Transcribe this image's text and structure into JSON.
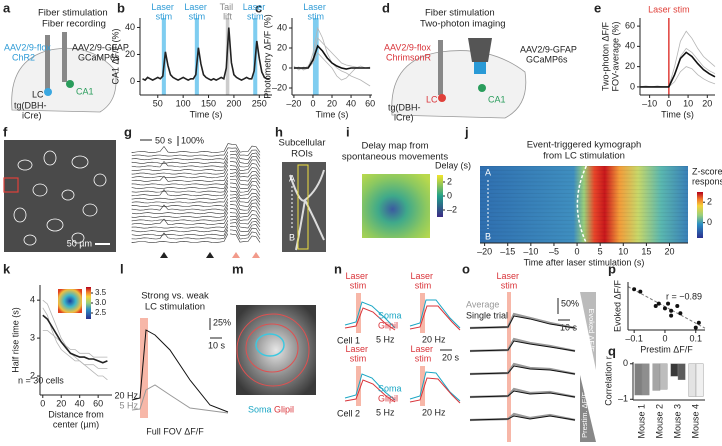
{
  "panel_letters": [
    "a",
    "b",
    "c",
    "d",
    "e",
    "f",
    "g",
    "h",
    "i",
    "j",
    "k",
    "l",
    "m",
    "n",
    "o",
    "p",
    "q"
  ],
  "a": {
    "title": [
      "Fiber stimulation",
      "Fiber recording"
    ],
    "virus_left": [
      "AAV2/9-flox",
      "ChR2"
    ],
    "virus_right": [
      "AAV2/9-GFAP",
      "GCaMP6s"
    ],
    "region_lc": "LC",
    "region_ca1": "CA1",
    "mouse_line": [
      "tg(DBH-",
      "iCre)"
    ]
  },
  "d": {
    "title": [
      "Fiber stimulation",
      "Two-photon imaging"
    ],
    "virus_left": [
      "AAV2/9-flox",
      "ChrimsonR"
    ],
    "virus_right": [
      "AAV2/9-GFAP",
      "GCaMP6s"
    ],
    "region_lc": "LC",
    "region_ca1": "CA1",
    "mouse_line": [
      "tg(DBH-",
      "iCre)"
    ]
  },
  "f": {
    "scale_bar": "50 µm"
  },
  "g": {
    "time_scale": "50 s",
    "amplitude_scale": "100%"
  },
  "h": {
    "title": [
      "Subcellular",
      "ROIs"
    ],
    "start": "A",
    "end": "B"
  },
  "i": {
    "title": [
      "Delay map from",
      "spontaneous movements"
    ],
    "colorbar": {
      "label": "Delay (s)",
      "lim": [
        -3,
        3
      ],
      "ticks": [
        2,
        0,
        {
          "value": -2,
          "label": "–2"
        }
      ]
    }
  },
  "l": {
    "title": [
      "Strong vs. weak",
      "LC stimulation"
    ],
    "amplitude_scale": "25%",
    "time_scale": "10 s",
    "strong": "20 Hz",
    "weak": "5 Hz",
    "xlabel": "Full FOV ΔF/F"
  },
  "m": {
    "soma": "Soma",
    "gliapil": "Glipil"
  },
  "n": {
    "stim_labels": [
      "Laser stim",
      "Laser stim",
      "Laser stim",
      "Laser stim"
    ],
    "soma": [
      "Soma",
      "Soma"
    ],
    "gliapil": [
      "Glipil",
      "Glipil"
    ],
    "cells": [
      "Cell 1",
      "Cell 2"
    ],
    "freqs": [
      "5 Hz",
      "20 Hz",
      "5 Hz",
      "20 Hz"
    ],
    "time_scale": "20 s"
  },
  "o": {
    "stim": "Laser stim",
    "average": "Average",
    "single": "Single trial",
    "amplitude_scale": "50%",
    "time_scale": "10 s",
    "evoked": "Evoked ΔF/F",
    "prestim": "Prestim. ΔF/F"
  },
  "chart_data": [
    {
      "type": "line",
      "xlabel": "Time (s)",
      "ylabel": "CA1 ΔF/F (%)",
      "xlim": [
        15,
        275
      ],
      "ylim": [
        -10,
        47
      ],
      "xticks": [
        50,
        100,
        150,
        200,
        250
      ],
      "yticks": [
        0,
        20,
        40
      ],
      "x": [
        20,
        25,
        30,
        35,
        40,
        45,
        50,
        55,
        60,
        65,
        70,
        75,
        80,
        85,
        90,
        95,
        100,
        105,
        110,
        115,
        120,
        125,
        130,
        135,
        140,
        145,
        150,
        155,
        160,
        165,
        170,
        175,
        180,
        185,
        190,
        195,
        200,
        205,
        210,
        215,
        220,
        225,
        230,
        235,
        240,
        245,
        250,
        255,
        260,
        265,
        270
      ],
      "series": [
        {
          "color": "#222222",
          "values": [
            2,
            1,
            3,
            2,
            1,
            2,
            3,
            2,
            4,
            22,
            12,
            5,
            3,
            2,
            1,
            2,
            3,
            2,
            1,
            2,
            2,
            5,
            25,
            13,
            5,
            3,
            2,
            1,
            2,
            1,
            2,
            3,
            2,
            10,
            40,
            14,
            5,
            3,
            2,
            1,
            2,
            3,
            2,
            2,
            8,
            30,
            17,
            7,
            3,
            2,
            2
          ]
        }
      ],
      "shaded_regions": [
        {
          "label": "Laser stim",
          "start": 58,
          "end": 66,
          "color": "#7fcdf0"
        },
        {
          "label": "Laser stim",
          "start": 123,
          "end": 131,
          "color": "#7fcdf0"
        },
        {
          "label": "Tail lift",
          "start": 184,
          "end": 191,
          "color": "#cccccc"
        },
        {
          "label": "Laser stim",
          "start": 238,
          "end": 246,
          "color": "#7fcdf0"
        }
      ]
    },
    {
      "type": "line",
      "xlabel": "Time (s)",
      "ylabel": "Photometry ΔF/F (%)",
      "xlim": [
        -22,
        62
      ],
      "ylim": [
        -27,
        50
      ],
      "xticks": [
        {
          "value": -20,
          "label": "–20"
        },
        0,
        20,
        40,
        60
      ],
      "yticks": [
        {
          "value": -20,
          "label": "–20"
        },
        0,
        20,
        40
      ],
      "x": [
        -20,
        -15,
        -10,
        -5,
        0,
        5,
        10,
        15,
        20,
        25,
        30,
        35,
        40,
        45,
        50,
        55,
        60
      ],
      "series": [
        {
          "color": "#b5b5b5",
          "values": [
            2,
            -2,
            1,
            0,
            15,
            40,
            30,
            15,
            5,
            0,
            -3,
            -5,
            -8,
            -10,
            -12,
            -15,
            -18
          ]
        },
        {
          "color": "#b5b5b5",
          "values": [
            -1,
            1,
            -2,
            0,
            5,
            15,
            10,
            5,
            0,
            -8,
            -12,
            -10,
            -5,
            0,
            2,
            0,
            1
          ]
        },
        {
          "color": "#b5b5b5",
          "values": [
            1,
            0,
            -1,
            2,
            10,
            30,
            25,
            20,
            15,
            10,
            5,
            3,
            2,
            1,
            0,
            0,
            0
          ]
        },
        {
          "color": "#111111",
          "values": [
            0,
            0,
            0,
            0,
            8,
            22,
            17,
            10,
            5,
            2,
            0,
            -1,
            0,
            0,
            0,
            0,
            0
          ]
        }
      ],
      "shaded_regions": [
        {
          "label": "Laser stim",
          "start": 0,
          "end": 6,
          "color": "#7fcdf0"
        }
      ]
    },
    {
      "type": "line",
      "xlabel": "Time (s)",
      "ylabel": [
        "Two-photon ΔF/F",
        "FOV-average (%)"
      ],
      "xlim": [
        -15,
        24
      ],
      "ylim": [
        -8,
        68
      ],
      "xticks": [
        {
          "value": -10,
          "label": "–10"
        },
        0,
        10,
        20
      ],
      "yticks": [
        0,
        20,
        40,
        60
      ],
      "x": [
        -15,
        -12,
        -9,
        -6,
        -3,
        0,
        3,
        6,
        9,
        12,
        15,
        18,
        21,
        24
      ],
      "series": [
        {
          "color": "#b5b5b5",
          "values": [
            0,
            0,
            0,
            1,
            0,
            0,
            20,
            45,
            55,
            48,
            38,
            30,
            25,
            20
          ]
        },
        {
          "color": "#b5b5b5",
          "values": [
            0,
            1,
            0,
            0,
            0,
            0,
            12,
            30,
            38,
            34,
            27,
            20,
            16,
            13
          ]
        },
        {
          "color": "#b5b5b5",
          "values": [
            0,
            0,
            0,
            0,
            0,
            0,
            5,
            15,
            20,
            18,
            12,
            8,
            5,
            3
          ]
        },
        {
          "color": "#111111",
          "values": [
            0,
            0,
            0,
            0,
            0,
            0,
            12,
            28,
            34,
            30,
            23,
            17,
            13,
            10
          ]
        }
      ],
      "marker_line": {
        "label": "Laser stim",
        "x": 0,
        "color": "#e0403a"
      }
    },
    {
      "type": "line",
      "xlabel": [
        "Distance from",
        "center (µm)"
      ],
      "ylabel": "Half rise time (s)",
      "xlim": [
        -3,
        75
      ],
      "ylim": [
        1.5,
        4.4
      ],
      "xticks": [
        0,
        20,
        40,
        60
      ],
      "yticks": [
        2,
        3,
        4
      ],
      "x": [
        0,
        5,
        10,
        15,
        20,
        25,
        30,
        35,
        40,
        45,
        50,
        55,
        60,
        65,
        70
      ],
      "series": [
        {
          "color": "#b5b5b5",
          "values": [
            4.0,
            3.9,
            3.6,
            3.3,
            3.0,
            2.8,
            2.6,
            2.5,
            2.4,
            2.3,
            2.2,
            2.1,
            2.0,
            2.0,
            1.9
          ]
        },
        {
          "color": "#b5b5b5",
          "values": [
            3.2,
            3.2,
            3.1,
            3.0,
            2.9,
            2.8,
            2.7,
            2.7,
            2.6,
            2.6,
            2.6,
            2.5,
            2.5,
            2.5,
            2.5
          ]
        },
        {
          "color": "#b5b5b5",
          "values": [
            3.8,
            3.6,
            3.2,
            2.9,
            2.7,
            2.6,
            2.5,
            2.4,
            2.4,
            2.3,
            2.3,
            2.3,
            2.2,
            2.2,
            2.2
          ]
        },
        {
          "color": "#222222",
          "values": [
            3.6,
            3.5,
            3.3,
            3.1,
            2.9,
            2.75,
            2.6,
            2.55,
            2.5,
            2.5,
            2.45,
            2.45,
            2.4,
            2.35,
            2.4
          ]
        }
      ],
      "annotation": "n = 30 cells",
      "colorbar": {
        "lim": [
          2.2,
          3.8
        ],
        "ticks": [
          3.5,
          {
            "value": 3,
            "label": "3.0"
          },
          2.5
        ]
      }
    },
    {
      "type": "kymograph",
      "title": [
        "Event-triggered kymograph",
        "from LC stimulation"
      ],
      "xlabel": "Time after laser stimulation (s)",
      "xlim": [
        -21,
        24
      ],
      "xticks": [
        {
          "value": -20,
          "label": "–20"
        },
        {
          "value": -15,
          "label": "–15"
        },
        {
          "value": -10,
          "label": "–10"
        },
        {
          "value": -5,
          "label": "–5"
        },
        0,
        5,
        10,
        15,
        20
      ],
      "start": "A",
      "end": "B",
      "colorbar": {
        "label": [
          "Z-scored",
          "response"
        ],
        "lim": [
          -1.5,
          3
        ],
        "ticks": [
          2,
          0
        ]
      }
    },
    {
      "type": "scatter",
      "xlabel": "Prestim ΔF/F",
      "ylabel": "Evoked ΔF/F",
      "xlim": [
        -0.12,
        0.13
      ],
      "ylim": [
        0,
        1
      ],
      "xticks": [
        {
          "value": -0.1,
          "label": "–0.1"
        },
        0,
        0.1
      ],
      "color": "#111111",
      "annotation": "r = −0.89",
      "x": [
        -0.1,
        -0.08,
        -0.03,
        -0.02,
        0,
        0.01,
        0.02,
        0.02,
        0.04,
        0.05,
        0.1,
        0.11
      ],
      "values": [
        0.85,
        0.8,
        0.5,
        0.55,
        0.45,
        0.55,
        0.4,
        0.3,
        0.5,
        0.35,
        0.05,
        0.15
      ]
    },
    {
      "type": "bar",
      "ylabel": "Correlation r",
      "ylim": [
        -1.02,
        0.05
      ],
      "yticks": [
        0,
        {
          "value": -1,
          "label": "–1"
        }
      ],
      "categories": [
        "Mouse 1",
        "Mouse 2",
        "Mouse 3",
        "Mouse 4"
      ],
      "series": [
        {
          "colors": [
            "#7f7f7f",
            "#a5a5a5",
            "#3a3a3a",
            "#e3e3e3"
          ],
          "values": [
            -0.88,
            -0.75,
            -0.35,
            -0.92
          ]
        },
        {
          "colors": [
            "#8e8e8e",
            "#bdbdbd",
            "#5c5c5c",
            "#f0f0f0"
          ],
          "values": [
            -0.88,
            -0.72,
            -0.45,
            -0.92
          ]
        }
      ]
    }
  ]
}
